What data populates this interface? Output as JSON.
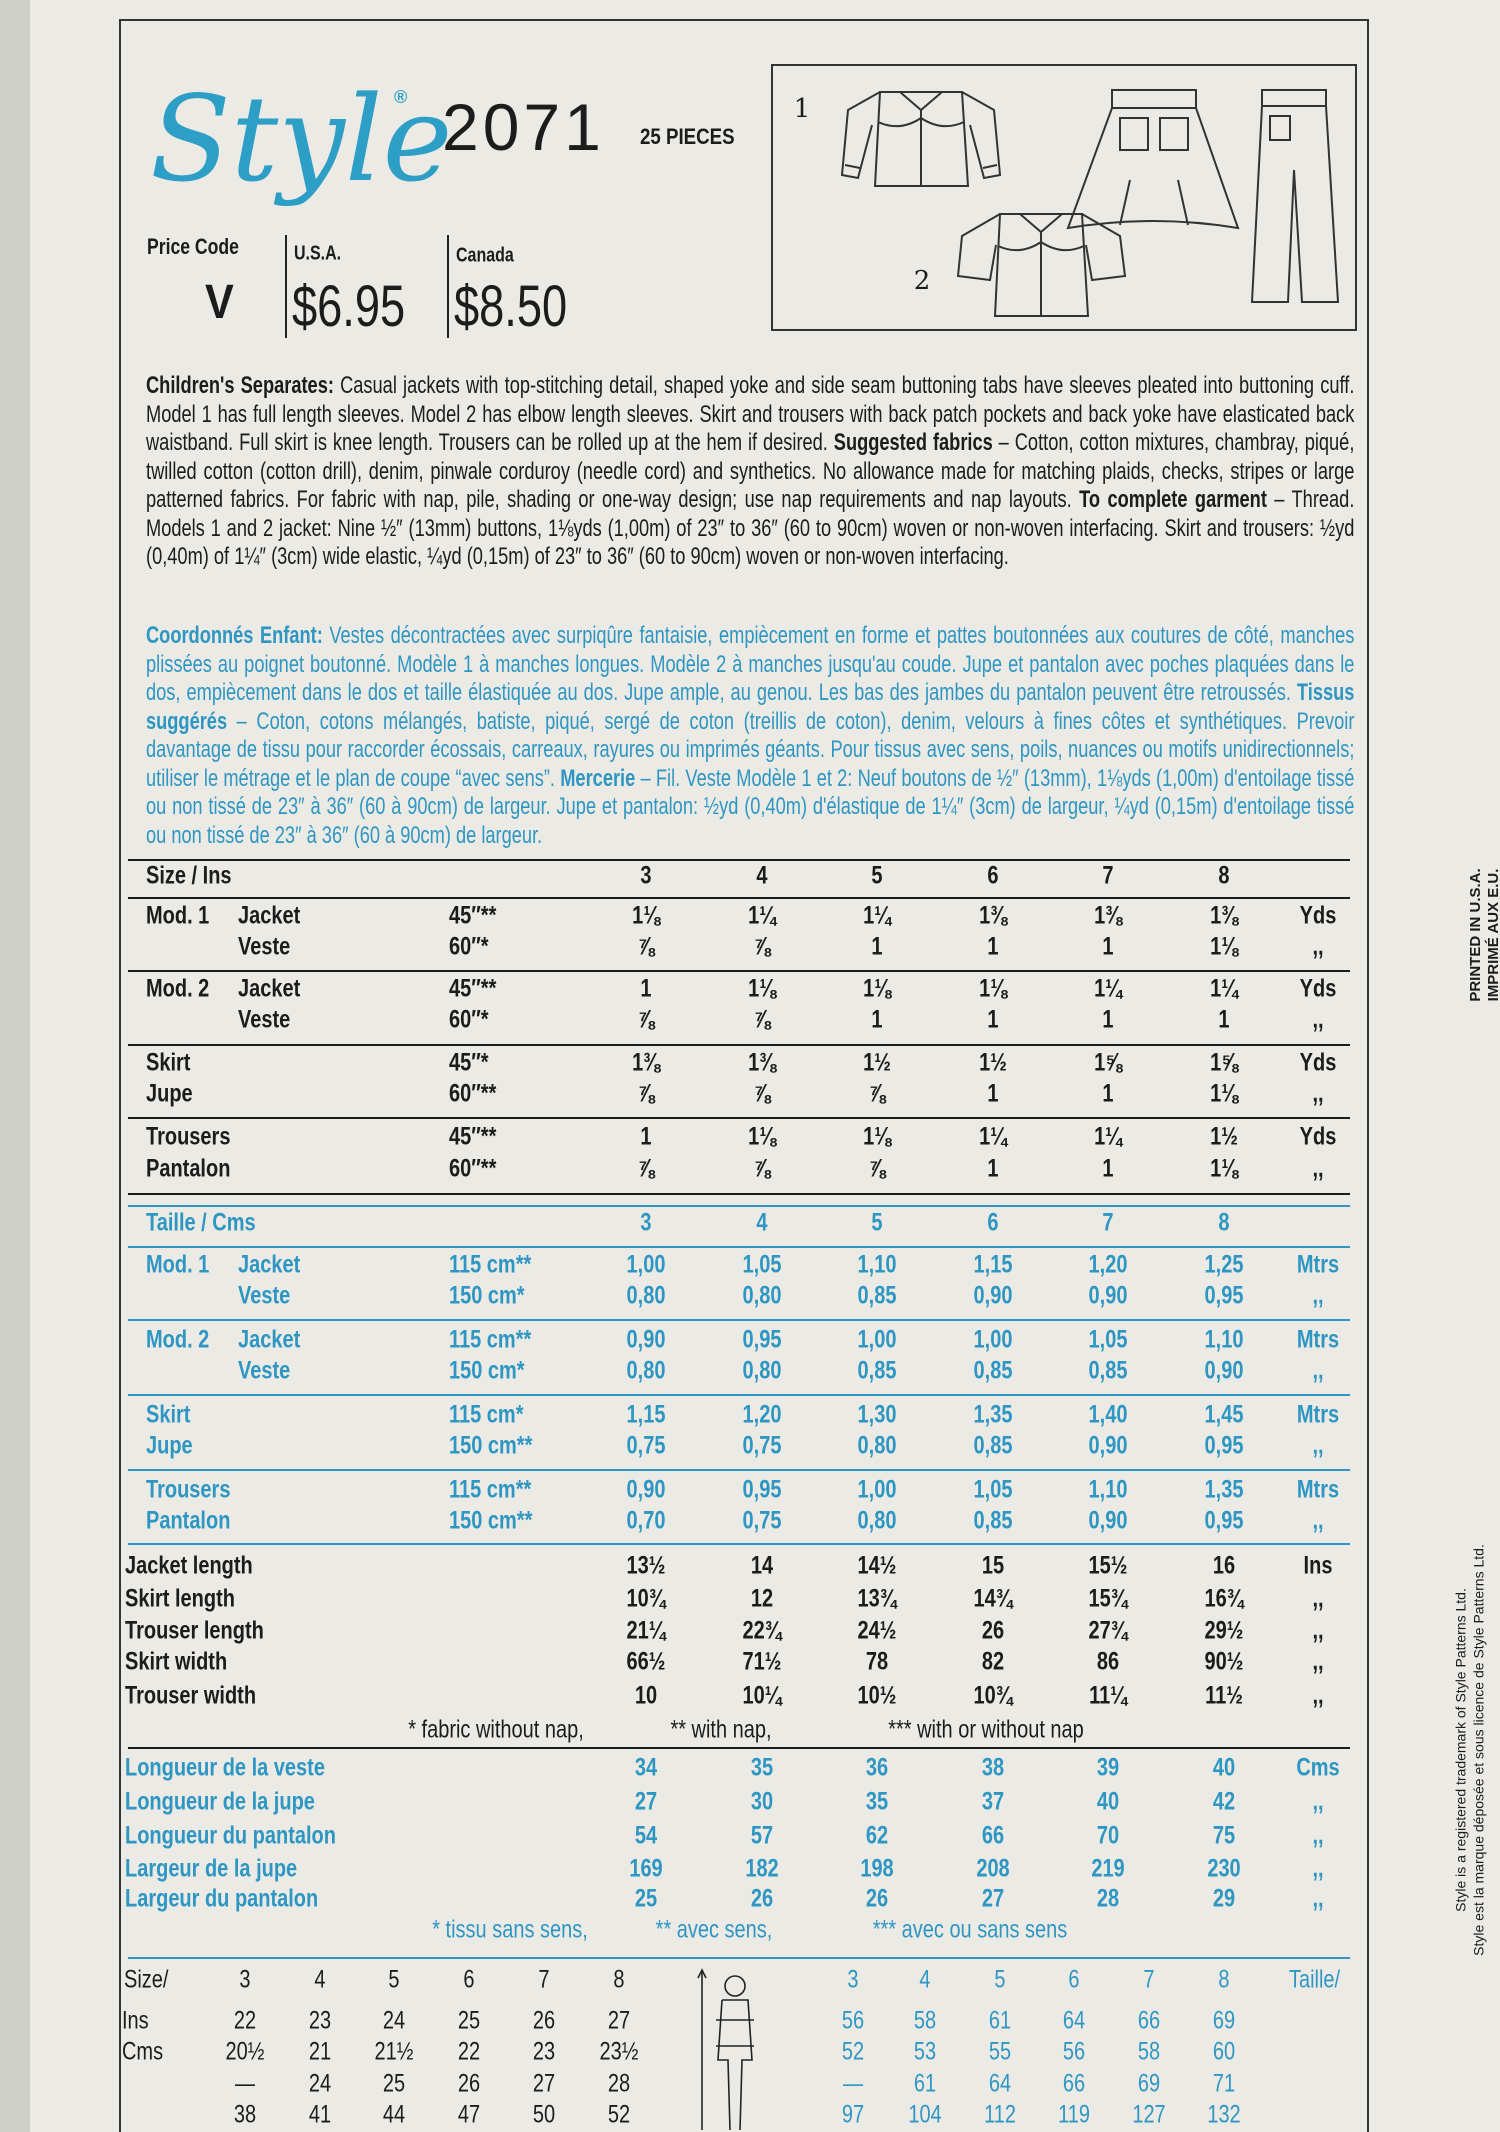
{
  "header": {
    "logo": "Style",
    "trademark": "®",
    "number": "2071",
    "pieces": "25 PIECES",
    "price_code_label": "Price Code",
    "price_code": "V",
    "usa_label": "U.S.A.",
    "usa_price": "$6.95",
    "canada_label": "Canada",
    "canada_price": "$8.50"
  },
  "illustration": {
    "labels": [
      "1",
      "2"
    ]
  },
  "description_en": [
    {
      "text": "Children's Separates:",
      "bold": true
    },
    {
      "text": " Casual jackets with top-stitching detail, shaped yoke and side seam buttoning tabs have sleeves pleated into buttoning cuff. Model 1 has full length sleeves. Model 2 has elbow length sleeves. Skirt and trousers with back patch pockets and back yoke have elasticated back waistband. Full skirt is knee length. Trousers can be rolled up at the hem if desired. "
    },
    {
      "text": "Suggested fabrics",
      "bold": true
    },
    {
      "text": " – Cotton, cotton mixtures, chambray, piqué, twilled cotton (cotton drill), denim, pinwale corduroy (needle cord) and synthetics. No allowance made for matching plaids, checks, stripes or large patterned fabrics. For fabric with nap, pile, shading or one-way design; use nap requirements and nap layouts. "
    },
    {
      "text": "To complete garment",
      "bold": true
    },
    {
      "text": " – Thread. Models 1 and 2 jacket: Nine ½″ (13mm) buttons, 1⅛yds (1,00m) of 23″ to 36″ (60 to 90cm) woven or non-woven interfacing. Skirt and trousers: ½yd (0,40m) of 1¼″ (3cm) wide elastic, ¼yd (0,15m) of 23″ to 36″ (60 to 90cm) woven or non-woven interfacing."
    }
  ],
  "description_fr": [
    {
      "text": "Coordonnés Enfant:",
      "bold": true
    },
    {
      "text": " Vestes décontractées avec surpiqûre fantaisie, empiècement en forme et pattes boutonnées aux coutures de côté, manches plissées au poignet boutonné. Modèle 1 à manches longues. Modèle 2 à manches jusqu'au coude. Jupe et pantalon avec poches plaquées dans le dos, empiècement dans le dos et taille élastiquée au dos. Jupe ample, au genou. Les bas des jambes du pantalon peuvent être retroussés. "
    },
    {
      "text": "Tissus suggérés",
      "bold": true
    },
    {
      "text": " – Coton, cotons mélangés, batiste, piqué, sergé de coton (treillis de coton), denim, velours à fines côtes et synthétiques. Prevoir davantage de tissu pour raccorder écossais, carreaux, rayures ou imprimés géants. Pour tissus avec sens, poils, nuances ou motifs unidirectionnels; utiliser le métrage et le plan de coupe “avec sens”. "
    },
    {
      "text": "Mercerie",
      "bold": true
    },
    {
      "text": " – Fil. Veste Modèle 1 et 2: Neuf boutons de ½″ (13mm), 1⅛yds (1,00m) d'entoilage tissé ou non tissé de 23″ à 36″ (60 à 90cm) de largeur. Jupe et pantalon: ½yd (0,40m) d'élastique de 1¼″ (3cm) de largeur, ¼yd (0,15m) d'entoilage tissé ou non tissé de 23″ à 36″ (60 à 90cm) de largeur."
    }
  ],
  "yardage_ins": {
    "header": "Size / Ins",
    "sizes": [
      3,
      4,
      5,
      6,
      7,
      8
    ],
    "groups": [
      {
        "model": "Mod. 1",
        "rows": [
          {
            "garment": "Jacket",
            "width": "45″**",
            "values": [
              "1⅛",
              "1¼",
              "1¼",
              "1⅜",
              "1⅜",
              "1⅜"
            ],
            "unit": "Yds"
          },
          {
            "garment": "Veste",
            "width": "60″*",
            "values": [
              "⅞",
              "⅞",
              "1",
              "1",
              "1",
              "1⅛"
            ],
            "unit": ",,"
          }
        ]
      },
      {
        "model": "Mod. 2",
        "rows": [
          {
            "garment": "Jacket",
            "width": "45″**",
            "values": [
              "1",
              "1⅛",
              "1⅛",
              "1⅛",
              "1¼",
              "1¼"
            ],
            "unit": "Yds"
          },
          {
            "garment": "Veste",
            "width": "60″*",
            "values": [
              "⅞",
              "⅞",
              "1",
              "1",
              "1",
              "1"
            ],
            "unit": ",,"
          }
        ]
      },
      {
        "rows": [
          {
            "garment": "Skirt",
            "width": "45″*",
            "values": [
              "1⅜",
              "1⅜",
              "1½",
              "1½",
              "1⅝",
              "1⅝"
            ],
            "unit": "Yds"
          },
          {
            "garment": "Jupe",
            "width": "60″**",
            "values": [
              "⅞",
              "⅞",
              "⅞",
              "1",
              "1",
              "1⅛"
            ],
            "unit": ",,"
          }
        ]
      },
      {
        "rows": [
          {
            "garment": "Trousers",
            "width": "45″**",
            "values": [
              "1",
              "1⅛",
              "1⅛",
              "1¼",
              "1¼",
              "1½"
            ],
            "unit": "Yds"
          },
          {
            "garment": "Pantalon",
            "width": "60″**",
            "values": [
              "⅞",
              "⅞",
              "⅞",
              "1",
              "1",
              "1⅛"
            ],
            "unit": ",,"
          }
        ]
      }
    ]
  },
  "yardage_cms": {
    "header": "Taille / Cms",
    "sizes": [
      3,
      4,
      5,
      6,
      7,
      8
    ],
    "groups": [
      {
        "model": "Mod. 1",
        "rows": [
          {
            "garment": "Jacket",
            "width": "115 cm**",
            "values": [
              "1,00",
              "1,05",
              "1,10",
              "1,15",
              "1,20",
              "1,25"
            ],
            "unit": "Mtrs"
          },
          {
            "garment": "Veste",
            "width": "150 cm*",
            "values": [
              "0,80",
              "0,80",
              "0,85",
              "0,90",
              "0,90",
              "0,95"
            ],
            "unit": ",,"
          }
        ]
      },
      {
        "model": "Mod. 2",
        "rows": [
          {
            "garment": "Jacket",
            "width": "115 cm**",
            "values": [
              "0,90",
              "0,95",
              "1,00",
              "1,00",
              "1,05",
              "1,10"
            ],
            "unit": "Mtrs"
          },
          {
            "garment": "Veste",
            "width": "150 cm*",
            "values": [
              "0,80",
              "0,80",
              "0,85",
              "0,85",
              "0,85",
              "0,90"
            ],
            "unit": ",,"
          }
        ]
      },
      {
        "rows": [
          {
            "garment": "Skirt",
            "width": "115 cm*",
            "values": [
              "1,15",
              "1,20",
              "1,30",
              "1,35",
              "1,40",
              "1,45"
            ],
            "unit": "Mtrs"
          },
          {
            "garment": "Jupe",
            "width": "150 cm**",
            "values": [
              "0,75",
              "0,75",
              "0,80",
              "0,85",
              "0,90",
              "0,95"
            ],
            "unit": ",,"
          }
        ]
      },
      {
        "rows": [
          {
            "garment": "Trousers",
            "width": "115 cm**",
            "values": [
              "0,90",
              "0,95",
              "1,00",
              "1,05",
              "1,10",
              "1,35"
            ],
            "unit": "Mtrs"
          },
          {
            "garment": "Pantalon",
            "width": "150 cm**",
            "values": [
              "0,70",
              "0,75",
              "0,80",
              "0,85",
              "0,90",
              "0,95"
            ],
            "unit": ",,"
          }
        ]
      }
    ]
  },
  "finished_ins": {
    "rows": [
      {
        "label": "Jacket length",
        "values": [
          "13½",
          "14",
          "14½",
          "15",
          "15½",
          "16"
        ],
        "unit": "Ins"
      },
      {
        "label": "Skirt length",
        "values": [
          "10¾",
          "12",
          "13¾",
          "14¾",
          "15¾",
          "16¾"
        ],
        "unit": ",,"
      },
      {
        "label": "Trouser length",
        "values": [
          "21¼",
          "22¾",
          "24½",
          "26",
          "27¾",
          "29½"
        ],
        "unit": ",,"
      },
      {
        "label": "Skirt width",
        "values": [
          "66½",
          "71½",
          "78",
          "82",
          "86",
          "90½"
        ],
        "unit": ",,"
      },
      {
        "label": "Trouser width",
        "values": [
          "10",
          "10¼",
          "10½",
          "10¾",
          "11¼",
          "11½"
        ],
        "unit": ",,"
      }
    ],
    "notes": [
      "* fabric without nap,",
      "** with nap,",
      "*** with or without nap"
    ]
  },
  "finished_cms": {
    "rows": [
      {
        "label": "Longueur de la veste",
        "values": [
          34,
          35,
          36,
          38,
          39,
          40
        ],
        "unit": "Cms"
      },
      {
        "label": "Longueur de la jupe",
        "values": [
          27,
          30,
          35,
          37,
          40,
          42
        ],
        "unit": ",,"
      },
      {
        "label": "Longueur du pantalon",
        "values": [
          54,
          57,
          62,
          66,
          70,
          75
        ],
        "unit": ",,"
      },
      {
        "label": "Largeur de la jupe",
        "values": [
          169,
          182,
          198,
          208,
          219,
          230
        ],
        "unit": ",,"
      },
      {
        "label": "Largeur du pantalon",
        "values": [
          25,
          26,
          26,
          27,
          28,
          29
        ],
        "unit": ",,"
      }
    ],
    "notes": [
      "* tissu sans sens,",
      "** avec sens,",
      "*** avec ou sans sens"
    ]
  },
  "body_measurements": {
    "size_label": "Size/",
    "sizes_ins": [
      3,
      4,
      5,
      6,
      7,
      8
    ],
    "taille_label": "Taille/",
    "sizes_cms": [
      3,
      4,
      5,
      6,
      7,
      8
    ],
    "rows": [
      {
        "label": "Ins",
        "ins": [
          "22",
          "23",
          "24",
          "25",
          "26",
          "27"
        ],
        "cms": [
          "56",
          "58",
          "61",
          "64",
          "66",
          "69"
        ]
      },
      {
        "label": "Cms",
        "ins": [
          "20½",
          "21",
          "21½",
          "22",
          "23",
          "23½"
        ],
        "cms": [
          "52",
          "53",
          "55",
          "56",
          "58",
          "60"
        ]
      },
      {
        "ins": [
          "—",
          "24",
          "25",
          "26",
          "27",
          "28"
        ],
        "cms": [
          "—",
          "61",
          "64",
          "66",
          "69",
          "71"
        ]
      },
      {
        "ins": [
          "38",
          "41",
          "44",
          "47",
          "50",
          "52"
        ],
        "cms": [
          "97",
          "104",
          "112",
          "119",
          "127",
          "132"
        ]
      }
    ]
  },
  "side_text": {
    "printed": [
      "PRINTED IN U.S.A.",
      "IMPRIMÉ AUX E.U."
    ],
    "trademark": [
      "Style is a registered trademark of Style Patterns Ltd.",
      "Style est la marque déposée et sous licence de Style Patterns Ltd."
    ]
  }
}
